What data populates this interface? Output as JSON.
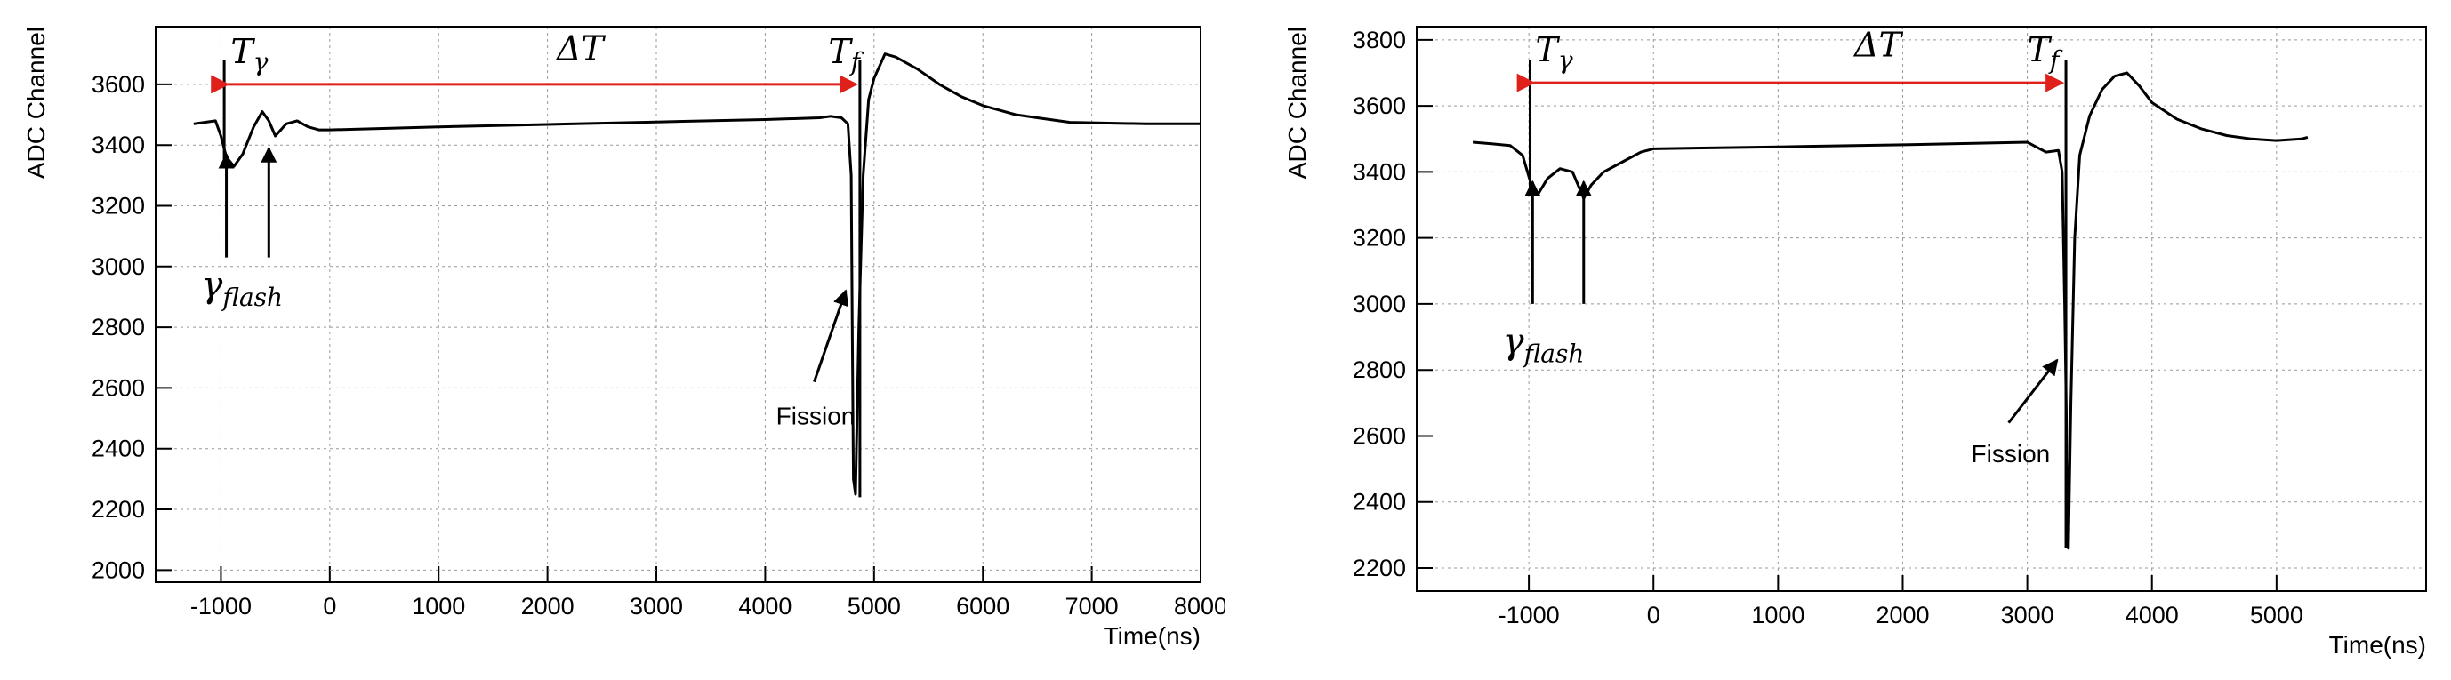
{
  "chart_data": [
    {
      "type": "line",
      "title": "",
      "xlabel": "Time(ns)",
      "ylabel": "ADC Channel",
      "xlim": [
        -1600,
        8000
      ],
      "ylim": [
        1960,
        3790
      ],
      "grid": true,
      "xticks": [
        "-1000",
        "0",
        "1000",
        "2000",
        "3000",
        "4000",
        "5000",
        "6000",
        "7000",
        "8000"
      ],
      "yticks": [
        "2000",
        "2200",
        "2400",
        "2600",
        "2800",
        "3000",
        "3200",
        "3400",
        "3600"
      ],
      "series": [
        {
          "values": [
            [
              -1250,
              3470
            ],
            [
              -1150,
              3475
            ],
            [
              -1050,
              3480
            ],
            [
              -1000,
              3430
            ],
            [
              -950,
              3360
            ],
            [
              -880,
              3330
            ],
            [
              -800,
              3370
            ],
            [
              -700,
              3460
            ],
            [
              -620,
              3510
            ],
            [
              -560,
              3480
            ],
            [
              -500,
              3430
            ],
            [
              -400,
              3470
            ],
            [
              -300,
              3480
            ],
            [
              -200,
              3460
            ],
            [
              -100,
              3450
            ],
            [
              0,
              3450
            ],
            [
              1000,
              3460
            ],
            [
              2000,
              3468
            ],
            [
              3000,
              3476
            ],
            [
              4000,
              3484
            ],
            [
              4500,
              3490
            ],
            [
              4600,
              3495
            ],
            [
              4700,
              3490
            ],
            [
              4760,
              3470
            ],
            [
              4790,
              3300
            ],
            [
              4800,
              2800
            ],
            [
              4810,
              2300
            ],
            [
              4830,
              2250
            ],
            [
              4860,
              2800
            ],
            [
              4900,
              3300
            ],
            [
              4950,
              3550
            ],
            [
              5000,
              3620
            ],
            [
              5100,
              3700
            ],
            [
              5200,
              3690
            ],
            [
              5400,
              3650
            ],
            [
              5600,
              3600
            ],
            [
              5800,
              3560
            ],
            [
              6000,
              3530
            ],
            [
              6300,
              3500
            ],
            [
              6500,
              3490
            ],
            [
              6800,
              3475
            ],
            [
              7500,
              3470
            ],
            [
              8000,
              3470
            ]
          ]
        }
      ],
      "annotations": {
        "t_gamma": "T",
        "t_gamma_sub": "γ",
        "delta_t": "ΔT",
        "t_f": "T",
        "t_f_sub": "f",
        "gamma_flash": "γ",
        "gamma_flash_sub": "flash",
        "fission": "Fission"
      }
    },
    {
      "type": "line",
      "title": "",
      "xlabel": "Time(ns)",
      "ylabel": "ADC Channel",
      "xlim": [
        -1900,
        6200
      ],
      "ylim": [
        2130,
        3840
      ],
      "grid": true,
      "xticks": [
        "-1000",
        "0",
        "1000",
        "2000",
        "3000",
        "4000",
        "5000"
      ],
      "yticks": [
        "2200",
        "2400",
        "2600",
        "2800",
        "3000",
        "3200",
        "3400",
        "3600",
        "3800"
      ],
      "series": [
        {
          "values": [
            [
              -1450,
              3490
            ],
            [
              -1300,
              3485
            ],
            [
              -1150,
              3480
            ],
            [
              -1050,
              3450
            ],
            [
              -980,
              3360
            ],
            [
              -930,
              3330
            ],
            [
              -850,
              3380
            ],
            [
              -750,
              3410
            ],
            [
              -650,
              3400
            ],
            [
              -560,
              3320
            ],
            [
              -500,
              3360
            ],
            [
              -400,
              3400
            ],
            [
              -300,
              3420
            ],
            [
              -200,
              3440
            ],
            [
              -100,
              3460
            ],
            [
              0,
              3470
            ],
            [
              1000,
              3476
            ],
            [
              2000,
              3482
            ],
            [
              3000,
              3490
            ],
            [
              3050,
              3480
            ],
            [
              3150,
              3460
            ],
            [
              3250,
              3465
            ],
            [
              3280,
              3400
            ],
            [
              3300,
              3000
            ],
            [
              3320,
              2500
            ],
            [
              3330,
              2260
            ],
            [
              3350,
              2700
            ],
            [
              3380,
              3200
            ],
            [
              3420,
              3450
            ],
            [
              3500,
              3570
            ],
            [
              3600,
              3650
            ],
            [
              3700,
              3690
            ],
            [
              3800,
              3700
            ],
            [
              3900,
              3660
            ],
            [
              4000,
              3610
            ],
            [
              4200,
              3560
            ],
            [
              4400,
              3530
            ],
            [
              4600,
              3510
            ],
            [
              4800,
              3500
            ],
            [
              5000,
              3495
            ],
            [
              5200,
              3500
            ],
            [
              5250,
              3505
            ]
          ]
        }
      ],
      "annotations": {
        "t_gamma": "T",
        "t_gamma_sub": "γ",
        "delta_t": "ΔT",
        "t_f": "T",
        "t_f_sub": "f",
        "gamma_flash": "γ",
        "gamma_flash_sub": "flash",
        "fission": "Fission"
      }
    }
  ]
}
